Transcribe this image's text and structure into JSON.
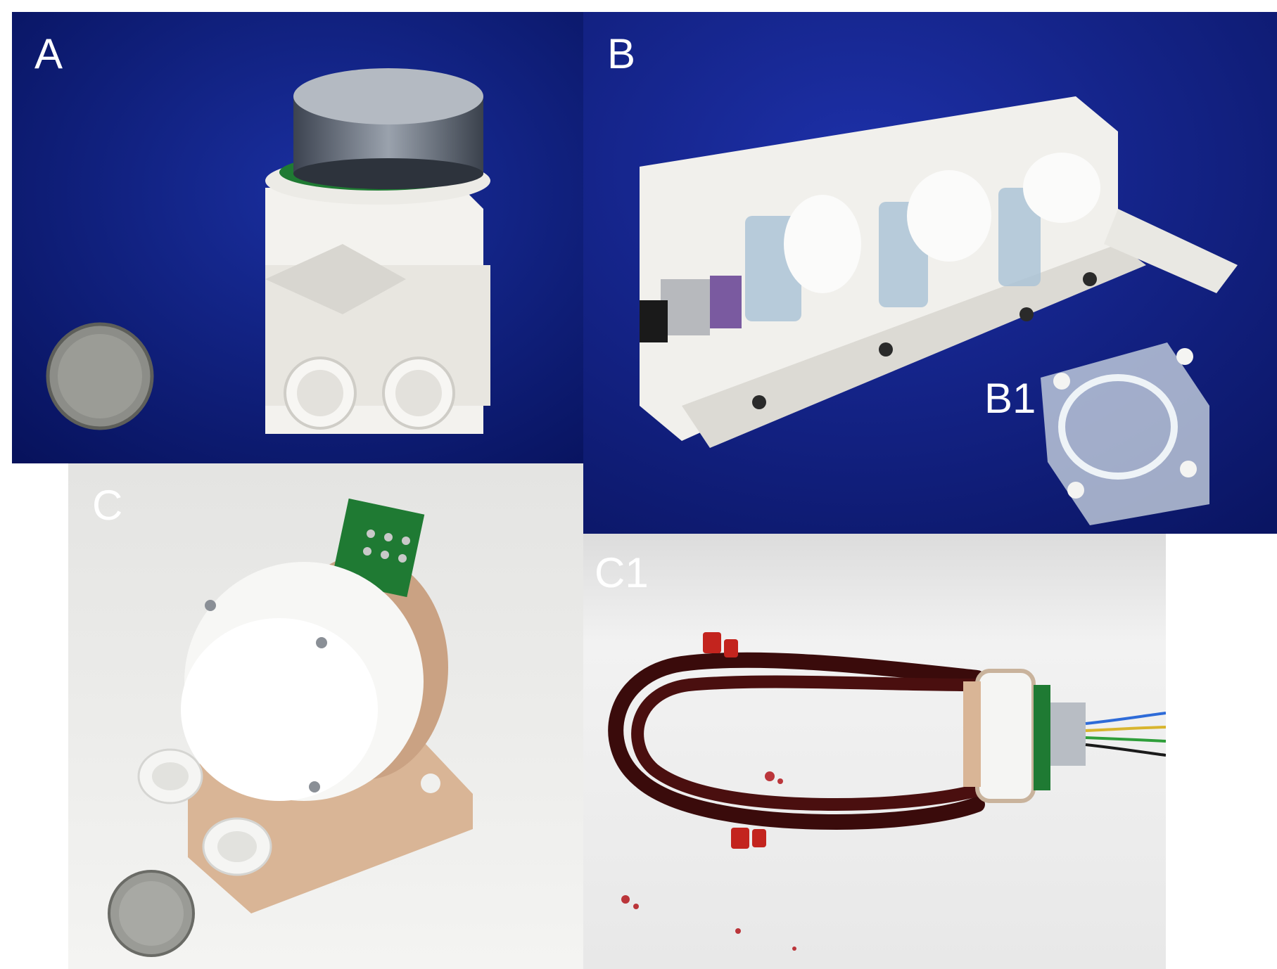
{
  "panels": [
    {
      "id": "A",
      "label": "A",
      "content": "pump-with-coin",
      "background": "#0a1a7a"
    },
    {
      "id": "B",
      "label": "B",
      "content": "multi-stage-assembly",
      "background": "#101f8a"
    },
    {
      "id": "B1",
      "label": "B1",
      "content": "acrylic-stator",
      "background": "#101f8a"
    },
    {
      "id": "C",
      "label": "C",
      "content": "pump-with-base-and-coin",
      "background": "#eeeeec"
    },
    {
      "id": "C1",
      "label": "C1",
      "content": "pump-in-blood-loop",
      "background": "#efefef"
    }
  ],
  "colors": {
    "blue_backdrop": "#0d1c80",
    "white_plastic": "#f6f5f2",
    "tan_plastic": "#d9b596",
    "pcb_green": "#1f7a33",
    "blood_tubing": "#3a0b0b",
    "clamp_red": "#c3241e",
    "metal": "#8a8f96"
  }
}
